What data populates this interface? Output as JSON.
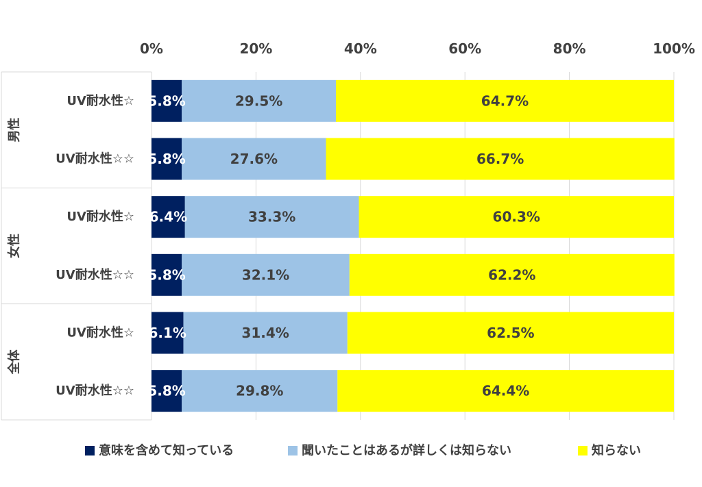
{
  "chart_data": {
    "type": "bar",
    "orientation": "horizontal",
    "stacked": "percent",
    "xlim": [
      0,
      100
    ],
    "x_ticks": [
      "0%",
      "20%",
      "40%",
      "60%",
      "80%",
      "100%"
    ],
    "x_tick_values": [
      0,
      20,
      40,
      60,
      80,
      100
    ],
    "x_axis_position": "top",
    "grid": true,
    "legend_position": "bottom",
    "groups": [
      {
        "label": "男性",
        "categories": [
          "UV耐水性☆",
          "UV耐水性☆☆"
        ]
      },
      {
        "label": "女性",
        "categories": [
          "UV耐水性☆",
          "UV耐水性☆☆"
        ]
      },
      {
        "label": "全体",
        "categories": [
          "UV耐水性☆",
          "UV耐水性☆☆"
        ]
      }
    ],
    "categories": [
      "UV耐水性☆",
      "UV耐水性☆☆",
      "UV耐水性☆",
      "UV耐水性☆☆",
      "UV耐水性☆",
      "UV耐水性☆☆"
    ],
    "series": [
      {
        "name": "意味を含めて知っている",
        "color": "#002060",
        "label_color": "#ffffff",
        "values": [
          5.8,
          5.8,
          6.4,
          5.8,
          6.1,
          5.8
        ],
        "labels": [
          "5.8%",
          "5.8%",
          "6.4%",
          "5.8%",
          "6.1%",
          "5.8%"
        ]
      },
      {
        "name": "聞いたことはあるが詳しくは知らない",
        "color": "#9DC3E6",
        "label_color": "#404040",
        "values": [
          29.5,
          27.6,
          33.3,
          32.1,
          31.4,
          29.8
        ],
        "labels": [
          "29.5%",
          "27.6%",
          "33.3%",
          "32.1%",
          "31.4%",
          "29.8%"
        ]
      },
      {
        "name": "知らない",
        "color": "#FFFF00",
        "label_color": "#404040",
        "values": [
          64.7,
          66.7,
          60.3,
          62.2,
          62.5,
          64.4
        ],
        "labels": [
          "64.7%",
          "66.7%",
          "60.3%",
          "62.2%",
          "62.5%",
          "64.4%"
        ]
      }
    ]
  }
}
